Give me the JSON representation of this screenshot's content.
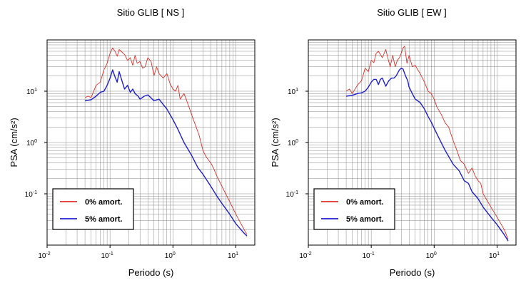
{
  "chart_data": [
    {
      "type": "line",
      "title": "Sitio GLIB [ NS ]",
      "xlabel": "Periodo (s)",
      "ylabel": "PSA (cm/s²)",
      "xscale": "log",
      "yscale": "log",
      "xlim": [
        0.01,
        20
      ],
      "ylim": [
        0.01,
        100
      ],
      "grid": true,
      "legend_position": "bottom-left",
      "x_ticks": [
        {
          "value": 0.01,
          "base": "10",
          "exp": "-2"
        },
        {
          "value": 0.1,
          "base": "10",
          "exp": "-1"
        },
        {
          "value": 1,
          "base": "10",
          "exp": "0"
        },
        {
          "value": 10,
          "base": "10",
          "exp": "1"
        }
      ],
      "y_ticks": [
        {
          "value": 0.1,
          "base": "10",
          "exp": "-1"
        },
        {
          "value": 1,
          "base": "10",
          "exp": "0"
        },
        {
          "value": 10,
          "base": "10",
          "exp": "1"
        }
      ],
      "series": [
        {
          "name": "0% amort.",
          "color": "#e0302a",
          "x": [
            0.04,
            0.045,
            0.05,
            0.06,
            0.07,
            0.08,
            0.09,
            0.1,
            0.11,
            0.12,
            0.13,
            0.14,
            0.15,
            0.17,
            0.19,
            0.21,
            0.23,
            0.25,
            0.27,
            0.3,
            0.33,
            0.36,
            0.4,
            0.45,
            0.5,
            0.55,
            0.6,
            0.7,
            0.8,
            0.9,
            1.0,
            1.1,
            1.2,
            1.3,
            1.5,
            1.7,
            2.0,
            2.3,
            2.6,
            3.0,
            3.3,
            3.7,
            4.0,
            4.5,
            5.0,
            6.0,
            8.0,
            10.0,
            13.0,
            15.0
          ],
          "y": [
            7.5,
            8.0,
            7.5,
            13,
            15,
            26,
            35,
            55,
            70,
            60,
            48,
            65,
            60,
            52,
            40,
            45,
            32,
            50,
            35,
            38,
            28,
            30,
            45,
            38,
            20,
            30,
            22,
            18,
            22,
            14,
            11,
            10,
            13,
            7,
            9,
            6,
            3.4,
            2.1,
            1.4,
            0.7,
            0.55,
            0.45,
            0.4,
            0.3,
            0.22,
            0.14,
            0.07,
            0.04,
            0.022,
            0.016
          ]
        },
        {
          "name": "5% amort.",
          "color": "#1f1fcf",
          "x": [
            0.04,
            0.05,
            0.06,
            0.07,
            0.08,
            0.09,
            0.1,
            0.11,
            0.12,
            0.13,
            0.14,
            0.15,
            0.17,
            0.19,
            0.21,
            0.23,
            0.25,
            0.28,
            0.3,
            0.35,
            0.4,
            0.5,
            0.6,
            0.7,
            0.8,
            0.9,
            1.0,
            1.2,
            1.5,
            2.0,
            2.5,
            3.0,
            4.0,
            5.0,
            6.0,
            8.0,
            10.0,
            13.0,
            15.0
          ],
          "y": [
            6.5,
            6.8,
            8,
            9.5,
            10,
            13,
            18,
            26,
            19,
            15,
            24,
            18,
            11,
            13,
            9.5,
            11,
            9,
            8,
            7,
            8,
            8.5,
            6.5,
            7,
            5.5,
            4.5,
            3.5,
            2.8,
            1.8,
            1.0,
            0.55,
            0.32,
            0.24,
            0.14,
            0.09,
            0.065,
            0.04,
            0.026,
            0.018,
            0.015
          ]
        }
      ]
    },
    {
      "type": "line",
      "title": "Sitio GLIB [ EW ]",
      "xlabel": "Periodo (s)",
      "ylabel": "PSA (cm/s²)",
      "xscale": "log",
      "yscale": "log",
      "xlim": [
        0.01,
        20
      ],
      "ylim": [
        0.01,
        100
      ],
      "grid": true,
      "legend_position": "bottom-left",
      "x_ticks": [
        {
          "value": 0.01,
          "base": "10",
          "exp": "-2"
        },
        {
          "value": 0.1,
          "base": "10",
          "exp": "-1"
        },
        {
          "value": 1,
          "base": "10",
          "exp": "0"
        },
        {
          "value": 10,
          "base": "10",
          "exp": "1"
        }
      ],
      "y_ticks": [
        {
          "value": 0.1,
          "base": "10",
          "exp": "-1"
        },
        {
          "value": 1,
          "base": "10",
          "exp": "0"
        },
        {
          "value": 10,
          "base": "10",
          "exp": "1"
        }
      ],
      "series": [
        {
          "name": "0% amort.",
          "color": "#e0302a",
          "x": [
            0.04,
            0.045,
            0.05,
            0.06,
            0.07,
            0.08,
            0.09,
            0.1,
            0.11,
            0.12,
            0.13,
            0.15,
            0.17,
            0.19,
            0.2,
            0.22,
            0.24,
            0.26,
            0.28,
            0.3,
            0.32,
            0.34,
            0.37,
            0.4,
            0.45,
            0.5,
            0.55,
            0.6,
            0.7,
            0.8,
            0.9,
            1.0,
            1.1,
            1.3,
            1.5,
            1.7,
            2.0,
            2.3,
            2.6,
            3.0,
            3.5,
            4.0,
            4.5,
            5.0,
            5.5,
            6.0,
            8.0,
            10.0,
            13.0,
            15.0
          ],
          "y": [
            10,
            11,
            9,
            13,
            16,
            28,
            24,
            40,
            36,
            55,
            60,
            45,
            65,
            38,
            30,
            50,
            30,
            40,
            45,
            55,
            70,
            75,
            35,
            50,
            30,
            32,
            26,
            22,
            15,
            10,
            9,
            7,
            5,
            3.5,
            2.4,
            2.0,
            1.1,
            0.7,
            0.45,
            0.38,
            0.25,
            0.32,
            0.22,
            0.18,
            0.16,
            0.1,
            0.055,
            0.035,
            0.02,
            0.013
          ]
        },
        {
          "name": "5% amort.",
          "color": "#1f1fcf",
          "x": [
            0.04,
            0.05,
            0.06,
            0.07,
            0.08,
            0.09,
            0.1,
            0.11,
            0.12,
            0.13,
            0.14,
            0.15,
            0.16,
            0.17,
            0.19,
            0.21,
            0.23,
            0.25,
            0.28,
            0.3,
            0.32,
            0.35,
            0.38,
            0.4,
            0.45,
            0.5,
            0.6,
            0.7,
            0.8,
            0.9,
            1.0,
            1.2,
            1.5,
            2.0,
            2.5,
            3.0,
            3.5,
            4.0,
            5.0,
            6.0,
            8.0,
            10.0,
            13.0,
            15.0
          ],
          "y": [
            8,
            8.3,
            9,
            9.3,
            10,
            12,
            15,
            17,
            17,
            13.5,
            17,
            18,
            15,
            12.5,
            16,
            18,
            18,
            20,
            26,
            28,
            27,
            20,
            16,
            12,
            9,
            7,
            6,
            4.5,
            3.2,
            2.5,
            1.9,
            1.2,
            0.7,
            0.38,
            0.28,
            0.18,
            0.16,
            0.11,
            0.08,
            0.055,
            0.035,
            0.025,
            0.016,
            0.012
          ]
        }
      ]
    }
  ]
}
